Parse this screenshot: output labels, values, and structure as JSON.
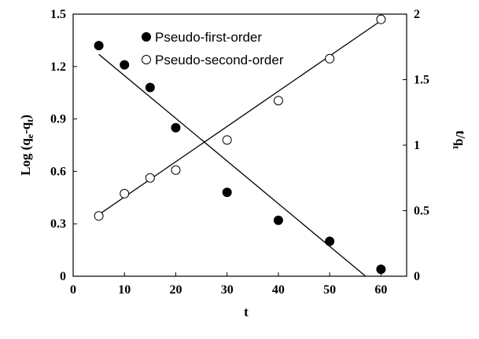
{
  "chart_data": {
    "type": "scatter",
    "xlabel": "t",
    "ylabel": "Log (q",
    "ylabel_sub1": "e",
    "ylabel_mid": "-q",
    "ylabel_sub2": "t",
    "ylabel_end": ")",
    "y2label": "t/q",
    "y2label_sub": "t",
    "xlim": [
      0,
      65
    ],
    "ylim": [
      0,
      1.5
    ],
    "y2lim": [
      0,
      2
    ],
    "x_ticks": [
      "0",
      "10",
      "20",
      "30",
      "40",
      "50",
      "60"
    ],
    "y_ticks": [
      "0",
      "0.3",
      "0.6",
      "0.9",
      "1.2",
      "1.5"
    ],
    "y2_ticks": [
      "0",
      "0.5",
      "1",
      "1.5",
      "2"
    ],
    "legend_position": "top-left",
    "series": [
      {
        "name": "Pseudo-first-order",
        "axis": "left",
        "marker": "filled-circle",
        "x": [
          5,
          10,
          15,
          20,
          30,
          40,
          50,
          60
        ],
        "y": [
          1.32,
          1.21,
          1.08,
          0.85,
          0.48,
          0.32,
          0.2,
          0.04
        ],
        "fit_line": {
          "x": [
            5,
            57
          ],
          "y": [
            1.27,
            0.0
          ]
        }
      },
      {
        "name": "Pseudo-second-order",
        "axis": "right",
        "marker": "open-circle",
        "x": [
          5,
          10,
          15,
          20,
          30,
          40,
          50,
          60
        ],
        "y": [
          0.46,
          0.63,
          0.75,
          0.81,
          1.04,
          1.34,
          1.66,
          1.96
        ],
        "fit_line": {
          "x": [
            5,
            60
          ],
          "y": [
            0.47,
            1.95
          ]
        }
      }
    ],
    "colors": {
      "marker_fill": "#000000",
      "marker_open_fill": "#ffffff",
      "line": "#000000"
    }
  }
}
